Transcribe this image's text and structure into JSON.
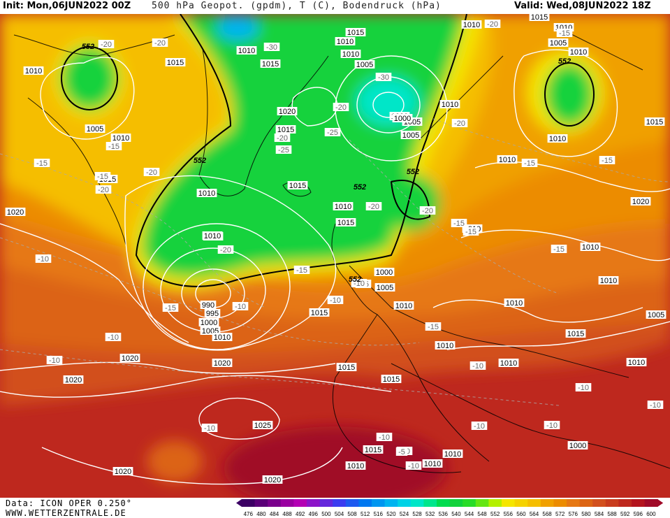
{
  "header": {
    "init": "Init: Mon,06JUN2022 00Z",
    "title": "500 hPa Geopot. (gpdm), T (C), Bodendruck (hPa)",
    "valid": "Valid: Wed,08JUN2022 18Z"
  },
  "footer": {
    "data_source": "Data: ICON OPER 0.250°",
    "website": "WWW.WETTERZENTRALE.DE"
  },
  "colors": {
    "ocean_map_base": "#f08a00",
    "green_low": "#12d23c",
    "yellow": "#f5e600",
    "orange": "#f0a000",
    "red": "#d23c1e",
    "deep_red": "#b4141e",
    "isobar": "#ffffff",
    "coastline": "#000000"
  },
  "legend": {
    "values": [
      "476",
      "480",
      "484",
      "488",
      "492",
      "496",
      "500",
      "504",
      "508",
      "512",
      "516",
      "520",
      "524",
      "528",
      "532",
      "536",
      "540",
      "544",
      "548",
      "552",
      "556",
      "560",
      "564",
      "568",
      "572",
      "576",
      "580",
      "584",
      "588",
      "592",
      "596",
      "600"
    ],
    "colors": [
      "#3c0064",
      "#5a0078",
      "#7a008c",
      "#9a00a0",
      "#b400b4",
      "#8c14c8",
      "#6428dc",
      "#3c3cf0",
      "#1e5af0",
      "#0078f0",
      "#0096f0",
      "#00b4f0",
      "#00d2e6",
      "#00e6c8",
      "#00e68c",
      "#00dc50",
      "#12d23c",
      "#28dc28",
      "#64e614",
      "#b4f000",
      "#f5e600",
      "#f5d200",
      "#f5be00",
      "#f0a000",
      "#ec8c00",
      "#e67814",
      "#dc6414",
      "#d2501e",
      "#c83c1e",
      "#be281e",
      "#b4141e",
      "#a00a28"
    ]
  },
  "isobar_labels": [
    "1015",
    "1010",
    "1010",
    "1015",
    "1010",
    "1005",
    "1010",
    "1015",
    "1010",
    "1020",
    "1015",
    "1010",
    "1005",
    "1000",
    "1005",
    "1010",
    "1005",
    "1000",
    "990",
    "995",
    "1000",
    "1005",
    "1010",
    "1015",
    "1000",
    "1005",
    "1010",
    "1010",
    "1015",
    "1010",
    "1010",
    "1010",
    "1010",
    "1020",
    "1020",
    "1020",
    "1020",
    "1015",
    "1025",
    "1020",
    "1020",
    "1015",
    "1015",
    "1010",
    "1010",
    "1010",
    "1010",
    "1010",
    "1010",
    "1005",
    "1000",
    "1010",
    "1015",
    "1015",
    "1010",
    "1010",
    "1020",
    "1015",
    "1010",
    "1005",
    "1000",
    "1010",
    "1015",
    "1010",
    "1015"
  ],
  "temp_labels": [
    "-20",
    "-20",
    "-30",
    "-30",
    "-20",
    "-25",
    "-20",
    "-25",
    "-15",
    "-15",
    "-20",
    "-20",
    "-15",
    "-20",
    "-20",
    "-15",
    "-15",
    "-15",
    "-20",
    "-20",
    "-15",
    "-15",
    "-10",
    "-15",
    "-10",
    "-10",
    "-10",
    "-10",
    "-10",
    "-10",
    "-10",
    "-15",
    "-10",
    "-10",
    "-10",
    "-10",
    "-15",
    "-15",
    "-10",
    "-10",
    "-5",
    "-10",
    "-20",
    "-15"
  ],
  "geopot_labels": [
    "552",
    "552",
    "552",
    "552",
    "552",
    "552"
  ]
}
